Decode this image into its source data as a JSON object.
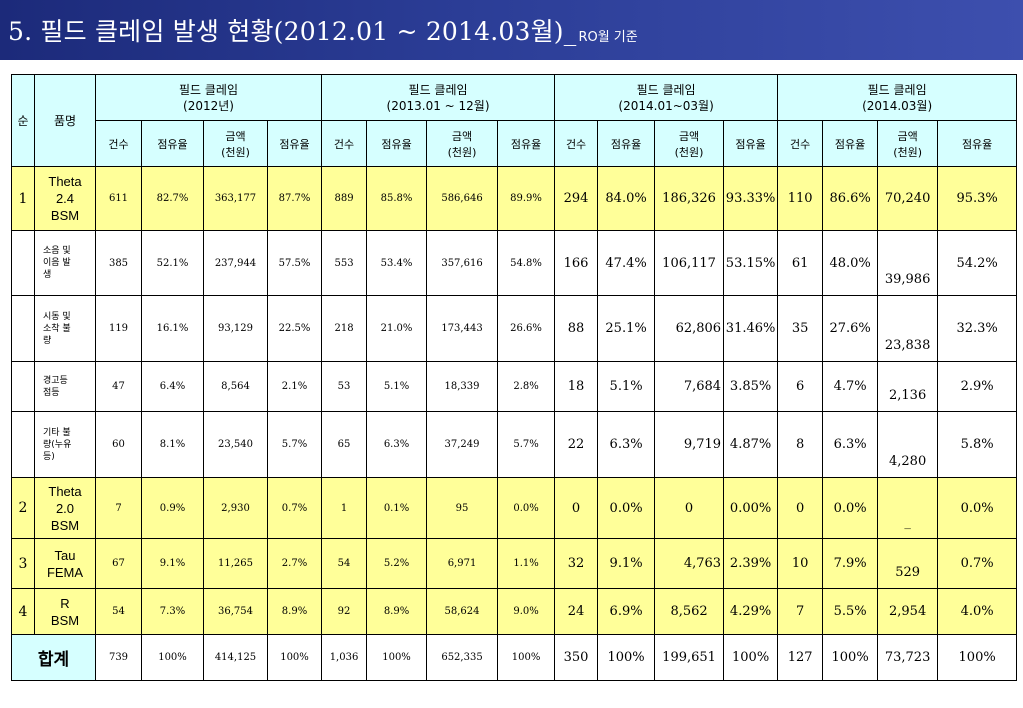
{
  "title": {
    "main": "5. 필드 클레임 발생 현황(2012.01 ~ 2014.03월)_",
    "sub": "RO월 기준"
  },
  "header": {
    "seq": "순",
    "product": "품명",
    "groups": [
      {
        "line1": "필드 클레임",
        "line2": "(2012년)"
      },
      {
        "line1": "필드 클레임",
        "line2": "(2013.01 ~ 12월)"
      },
      {
        "line1": "필드 클레임",
        "line2": "(2014.01~03월)"
      },
      {
        "line1": "필드 클레임",
        "line2": "(2014.03월)"
      }
    ],
    "sub": {
      "count": "건수",
      "share": "점유율",
      "amount1": "금액",
      "amount2": "(천원)"
    }
  },
  "rows": [
    {
      "seq": "1",
      "name": "Theta\n2.4\nBSM",
      "cells": [
        "611",
        "82.7%",
        "363,177",
        "87.7%",
        "889",
        "85.8%",
        "586,646",
        "89.9%",
        "294",
        "84.0%",
        "186,326",
        "93.33%",
        "110",
        "86.6%",
        "70,240",
        "95.3%"
      ]
    },
    {
      "seq": "",
      "name": "소음 및\n이음 발\n생",
      "cells": [
        "385",
        "52.1%",
        "237,944",
        "57.5%",
        "553",
        "53.4%",
        "357,616",
        "54.8%",
        "166",
        "47.4%",
        "106,117",
        "53.15%",
        "61",
        "48.0%",
        "39,986",
        "54.2%"
      ]
    },
    {
      "seq": "",
      "name": "시동 및\n소착 불\n량",
      "cells": [
        "119",
        "16.1%",
        "93,129",
        "22.5%",
        "218",
        "21.0%",
        "173,443",
        "26.6%",
        "88",
        "25.1%",
        "62,806",
        "31.46%",
        "35",
        "27.6%",
        "23,838",
        "32.3%"
      ]
    },
    {
      "seq": "",
      "name": "경고등\n점등",
      "cells": [
        "47",
        "6.4%",
        "8,564",
        "2.1%",
        "53",
        "5.1%",
        "18,339",
        "2.8%",
        "18",
        "5.1%",
        "7,684",
        "3.85%",
        "6",
        "4.7%",
        "2,136",
        "2.9%"
      ]
    },
    {
      "seq": "",
      "name": "기타 불\n량(누유\n등)",
      "cells": [
        "60",
        "8.1%",
        "23,540",
        "5.7%",
        "65",
        "6.3%",
        "37,249",
        "5.7%",
        "22",
        "6.3%",
        "9,719",
        "4.87%",
        "8",
        "6.3%",
        "4,280",
        "5.8%"
      ]
    },
    {
      "seq": "2",
      "name": "Theta\n2.0\nBSM",
      "cells": [
        "7",
        "0.9%",
        "2,930",
        "0.7%",
        "1",
        "0.1%",
        "95",
        "0.0%",
        "0",
        "0.0%",
        "0",
        "0.00%",
        "0",
        "0.0%",
        "_",
        "0.0%"
      ]
    },
    {
      "seq": "3",
      "name": "Tau\nFEMA",
      "cells": [
        "67",
        "9.1%",
        "11,265",
        "2.7%",
        "54",
        "5.2%",
        "6,971",
        "1.1%",
        "32",
        "9.1%",
        "4,763",
        "2.39%",
        "10",
        "7.9%",
        "529",
        "0.7%"
      ]
    },
    {
      "seq": "4",
      "name": "R\nBSM",
      "cells": [
        "54",
        "7.3%",
        "36,754",
        "8.9%",
        "92",
        "8.9%",
        "58,624",
        "9.0%",
        "24",
        "6.9%",
        "8,562",
        "4.29%",
        "7",
        "5.5%",
        "2,954",
        "4.0%"
      ]
    },
    {
      "seq": "",
      "name": "합계",
      "cells": [
        "739",
        "100%",
        "414,125",
        "100%",
        "1,036",
        "100%",
        "652,335",
        "100%",
        "350",
        "100%",
        "199,651",
        "100%",
        "127",
        "100%",
        "73,723",
        "100%"
      ]
    }
  ]
}
